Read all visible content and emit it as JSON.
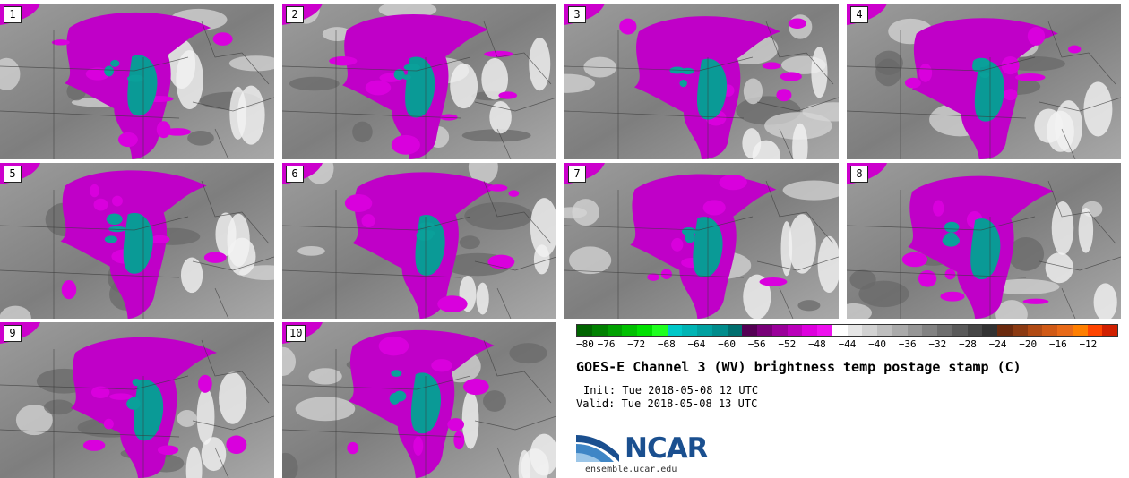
{
  "panels": [
    {
      "label": "1"
    },
    {
      "label": "2"
    },
    {
      "label": "3"
    },
    {
      "label": "4"
    },
    {
      "label": "5"
    },
    {
      "label": "6"
    },
    {
      "label": "7"
    },
    {
      "label": "8"
    },
    {
      "label": "9"
    },
    {
      "label": "10"
    }
  ],
  "colorbar": {
    "ticks": [
      "−80",
      "−76",
      "−72",
      "−68",
      "−64",
      "−60",
      "−56",
      "−52",
      "−48",
      "−44",
      "−40",
      "−36",
      "−32",
      "−28",
      "−24",
      "−20",
      "−16",
      "−12"
    ],
    "colors": [
      "#006400",
      "#008000",
      "#00a000",
      "#00c000",
      "#00e000",
      "#20ff20",
      "#00c8c8",
      "#00b4b4",
      "#00a0a0",
      "#008c8c",
      "#006e6e",
      "#540054",
      "#780078",
      "#9a009a",
      "#bb00bb",
      "#dd00dd",
      "#ee11ee",
      "#ffffff",
      "#e6e6e6",
      "#d2d2d2",
      "#bebebe",
      "#aaaaaa",
      "#969696",
      "#828282",
      "#6e6e6e",
      "#5a5a5a",
      "#464646",
      "#323232",
      "#6b2a0e",
      "#8b3a12",
      "#b04a14",
      "#d05a16",
      "#e86a18",
      "#ff7f00",
      "#ff4500",
      "#d02000"
    ]
  },
  "title": "GOES-E Channel 3 (WV) brightness temp postage stamp (C)",
  "init_text": "Init: Tue 2018-05-08 12 UTC",
  "valid_text": "Valid: Tue 2018-05-08 13 UTC",
  "logo": {
    "name": "NCAR",
    "url": "ensemble.ucar.edu"
  }
}
